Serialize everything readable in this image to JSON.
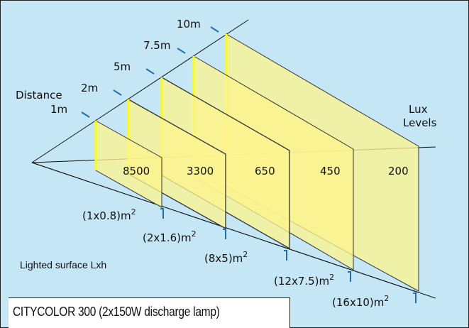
{
  "labels": {
    "distance": "Distance",
    "lux_line1": "Lux",
    "lux_line2": "Levels",
    "lighted_surface": "Lighted surface Lxh"
  },
  "distances": [
    "1m",
    "2m",
    "5m",
    "7.5m",
    "10m"
  ],
  "lux_values": [
    "8500",
    "3300",
    "650",
    "450",
    "200"
  ],
  "surfaces": [
    {
      "base": "(1x0.8)m",
      "exp": "2"
    },
    {
      "base": "(2x1.6)m",
      "exp": "2"
    },
    {
      "base": "(8x5)m",
      "exp": "2"
    },
    {
      "base": "(12x7.5)m",
      "exp": "2"
    },
    {
      "base": "(16x10)m",
      "exp": "2"
    }
  ],
  "title": "CITYCOLOR 300 (2x150W discharge lamp)",
  "colors": {
    "background": "#c5e6f5",
    "panel": "#fbf38f",
    "panel_edge": "#ffff00",
    "tick": "#1f6fae"
  }
}
